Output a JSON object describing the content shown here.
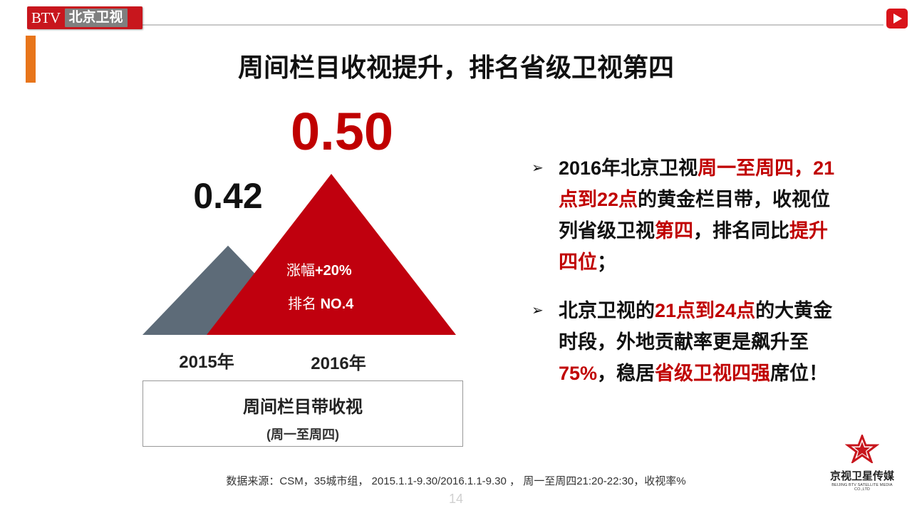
{
  "header": {
    "logo_btv": "BTV",
    "logo_cn": "北京卫视"
  },
  "title": "周间栏目收视提升，排名省级卫视第四",
  "chart_data": {
    "type": "triangle-bar",
    "categories": [
      "2015年",
      "2016年"
    ],
    "values": [
      0.42,
      0.5
    ],
    "value_labels": [
      "0.42",
      "0.50"
    ],
    "annotations": {
      "growth_label": "涨幅",
      "growth_value": "+20%",
      "rank_label": "排名",
      "rank_value": "NO.4"
    },
    "colors": [
      "#5d6b78",
      "#c0000e"
    ]
  },
  "legend": {
    "title": "周间栏目带收视",
    "subtitle": "(周一至周四)"
  },
  "bullets": {
    "b1": [
      "2016年北京卫视",
      "周一至周四，",
      "21点到22点",
      "的黄金栏目带，收视位列省级卫视",
      "第四",
      "，排名同比",
      "提升四位",
      "；"
    ],
    "b2": [
      "北京卫视的",
      "21点到24点",
      "的大黄金时段，外地贡献率更是飙升至",
      "75%",
      "，稳居",
      "省级卫视四强",
      "席位！"
    ]
  },
  "footer": {
    "source": "数据来源：CSM，35城市组， 2015.1.1-9.30/2016.1.1-9.30 ， 周一至周四21:20-22:30，收视率%",
    "page": "14",
    "media_logo_cn": "京视卫星传媒",
    "media_logo_en": "BEIJING BTV SATELLITE MEDIA CO.,LTD"
  }
}
